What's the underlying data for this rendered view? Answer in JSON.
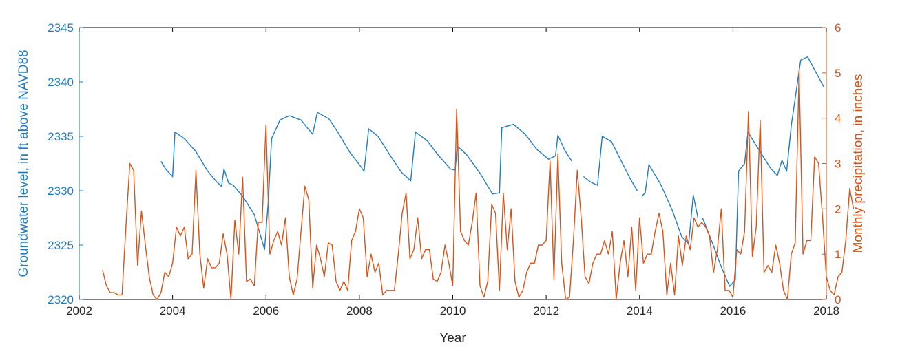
{
  "chart_data": {
    "type": "line",
    "xlabel": "Year",
    "ylabel_left": "Groundwater level, in ft above NAVD88",
    "ylabel_right": "Monthly precipitation, in inches",
    "xlim": [
      2002,
      2018
    ],
    "ylim_left": [
      2320,
      2345
    ],
    "ylim_right": [
      0,
      6
    ],
    "x_ticks": [
      "2002",
      "2004",
      "2006",
      "2008",
      "2010",
      "2012",
      "2014",
      "2016",
      "2018"
    ],
    "y_left_ticks": [
      "2320",
      "2325",
      "2330",
      "2335",
      "2340",
      "2345"
    ],
    "y_right_ticks": [
      "0",
      "1",
      "2",
      "3",
      "4",
      "5",
      "6"
    ],
    "grid": false,
    "colors": {
      "groundwater": "#1f7cc1",
      "precipitation": "#d95319",
      "axis": "#000000"
    },
    "series": [
      {
        "axis": "left",
        "segments": [
          [
            [
              2003.75,
              2332.7
            ],
            [
              2003.85,
              2332.0
            ],
            [
              2004.0,
              2331.3
            ],
            [
              2004.05,
              2335.4
            ],
            [
              2004.25,
              2334.8
            ],
            [
              2004.5,
              2333.6
            ],
            [
              2004.75,
              2331.8
            ],
            [
              2004.95,
              2330.8
            ],
            [
              2005.05,
              2330.4
            ],
            [
              2005.1,
              2332.0
            ],
            [
              2005.2,
              2330.7
            ],
            [
              2005.3,
              2330.5
            ],
            [
              2005.5,
              2329.5
            ],
            [
              2005.75,
              2327.8
            ],
            [
              2005.97,
              2324.6
            ],
            [
              2006.05,
              2329.0
            ],
            [
              2006.12,
              2334.8
            ],
            [
              2006.3,
              2336.5
            ],
            [
              2006.5,
              2336.9
            ],
            [
              2006.75,
              2336.5
            ],
            [
              2006.9,
              2335.7
            ],
            [
              2007.0,
              2335.2
            ],
            [
              2007.1,
              2337.2
            ],
            [
              2007.35,
              2336.6
            ],
            [
              2007.55,
              2335.3
            ],
            [
              2007.8,
              2333.5
            ],
            [
              2008.0,
              2332.4
            ],
            [
              2008.1,
              2331.8
            ],
            [
              2008.2,
              2335.7
            ],
            [
              2008.4,
              2335.0
            ],
            [
              2008.65,
              2333.3
            ],
            [
              2008.9,
              2331.7
            ],
            [
              2009.1,
              2330.9
            ],
            [
              2009.2,
              2335.4
            ],
            [
              2009.45,
              2334.6
            ],
            [
              2009.7,
              2333.2
            ],
            [
              2009.95,
              2332.0
            ],
            [
              2010.05,
              2331.9
            ],
            [
              2010.1,
              2334.1
            ],
            [
              2010.3,
              2333.3
            ],
            [
              2010.6,
              2331.5
            ],
            [
              2010.85,
              2329.7
            ],
            [
              2011.0,
              2329.8
            ],
            [
              2011.05,
              2335.8
            ],
            [
              2011.3,
              2336.1
            ],
            [
              2011.55,
              2335.2
            ],
            [
              2011.8,
              2333.8
            ],
            [
              2012.05,
              2332.9
            ],
            [
              2012.2,
              2333.2
            ],
            [
              2012.25,
              2335.1
            ],
            [
              2012.4,
              2333.7
            ],
            [
              2012.55,
              2332.7
            ]
          ],
          [
            [
              2012.8,
              2331.3
            ],
            [
              2012.95,
              2330.8
            ],
            [
              2013.1,
              2330.5
            ],
            [
              2013.2,
              2335.0
            ],
            [
              2013.4,
              2334.5
            ],
            [
              2013.6,
              2332.8
            ],
            [
              2013.8,
              2331.1
            ],
            [
              2013.95,
              2330.0
            ]
          ],
          [
            [
              2014.05,
              2329.5
            ],
            [
              2014.12,
              2329.8
            ],
            [
              2014.2,
              2332.4
            ],
            [
              2014.45,
              2330.6
            ],
            [
              2014.7,
              2328.2
            ],
            [
              2014.9,
              2325.8
            ],
            [
              2015.05,
              2325.1
            ],
            [
              2015.15,
              2329.6
            ],
            [
              2015.25,
              2327.5
            ]
          ],
          [
            [
              2015.35,
              2327.5
            ],
            [
              2015.55,
              2325.3
            ],
            [
              2015.75,
              2323.0
            ],
            [
              2015.93,
              2321.2
            ],
            [
              2016.05,
              2321.8
            ],
            [
              2016.12,
              2331.8
            ],
            [
              2016.25,
              2332.5
            ],
            [
              2016.32,
              2335.4
            ],
            [
              2016.55,
              2333.8
            ],
            [
              2016.8,
              2332.1
            ],
            [
              2016.95,
              2331.4
            ],
            [
              2017.05,
              2332.8
            ],
            [
              2017.15,
              2331.8
            ],
            [
              2017.25,
              2336.0
            ],
            [
              2017.45,
              2342.0
            ],
            [
              2017.6,
              2342.3
            ],
            [
              2017.8,
              2340.7
            ],
            [
              2017.95,
              2339.5
            ]
          ]
        ]
      },
      {
        "axis": "right",
        "x_start": 2002.5,
        "step": 0.08333,
        "values": [
          0.65,
          0.3,
          0.15,
          0.15,
          0.1,
          0.1,
          1.6,
          3.0,
          2.85,
          0.75,
          1.95,
          1.2,
          0.5,
          0.1,
          0.0,
          0.15,
          0.6,
          0.5,
          0.8,
          1.6,
          1.4,
          1.6,
          0.9,
          1.0,
          2.85,
          1.0,
          0.25,
          0.9,
          0.7,
          0.7,
          0.8,
          1.45,
          1.0,
          0.0,
          1.75,
          1.0,
          2.7,
          0.4,
          0.45,
          0.3,
          1.7,
          1.7,
          3.85,
          1.0,
          1.3,
          1.5,
          1.2,
          1.8,
          0.5,
          0.1,
          0.45,
          1.5,
          2.5,
          2.2,
          0.25,
          1.2,
          0.9,
          0.5,
          1.25,
          1.2,
          0.4,
          0.2,
          0.4,
          0.2,
          1.3,
          1.5,
          2.0,
          1.8,
          0.5,
          1.0,
          0.6,
          0.8,
          0.1,
          0.2,
          0.2,
          0.2,
          1.0,
          1.9,
          2.35,
          0.9,
          1.1,
          1.8,
          0.9,
          1.1,
          1.1,
          0.45,
          0.4,
          0.6,
          1.2,
          0.8,
          0.3,
          4.2,
          1.5,
          1.3,
          1.2,
          1.7,
          2.35,
          0.3,
          0.05,
          0.4,
          2.1,
          1.9,
          0.2,
          2.35,
          1.1,
          2.0,
          0.4,
          0.05,
          0.2,
          0.6,
          0.8,
          0.8,
          1.2,
          1.2,
          1.3,
          3.05,
          0.45,
          3.2,
          0.8,
          0.0,
          0.05,
          1.3,
          2.85,
          1.8,
          0.5,
          0.35,
          0.8,
          1.0,
          1.0,
          1.3,
          1.0,
          1.5,
          0.0,
          0.8,
          1.3,
          0.5,
          1.6,
          0.2,
          1.8,
          0.8,
          1.0,
          1.0,
          1.5,
          1.9,
          1.5,
          0.1,
          0.8,
          0.1,
          1.4,
          0.75,
          1.4,
          1.1,
          1.8,
          1.6,
          1.7,
          1.6,
          1.4,
          0.6,
          1.1,
          2.0,
          0.2,
          0.2,
          0.05,
          1.1,
          1.0,
          1.5,
          4.15,
          0.95,
          1.6,
          3.95,
          0.6,
          0.75,
          0.6,
          1.2,
          0.8,
          0.2,
          0.0,
          1.0,
          1.25,
          5.05,
          1.0,
          1.3,
          1.3,
          3.15,
          3.0,
          1.85,
          0.5,
          0.2,
          0.1,
          0.5,
          0.6,
          1.3,
          2.45,
          2.0
        ]
      }
    ]
  }
}
